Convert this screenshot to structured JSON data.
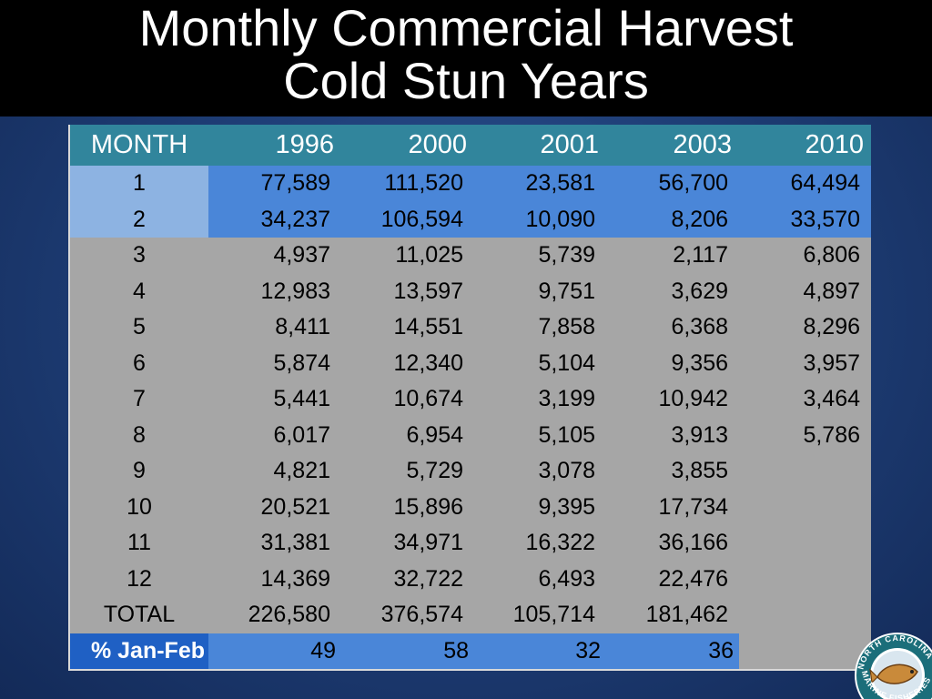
{
  "title": {
    "line1": "Monthly Commercial Harvest",
    "line2": "Cold Stun Years"
  },
  "table": {
    "headers": [
      "MONTH",
      "1996",
      "2000",
      "2001",
      "2003",
      "2010"
    ],
    "rows": [
      {
        "month": "1",
        "values": [
          "77,589",
          "111,520",
          "23,581",
          "56,700",
          "64,494"
        ]
      },
      {
        "month": "2",
        "values": [
          "34,237",
          "106,594",
          "10,090",
          "8,206",
          "33,570"
        ]
      },
      {
        "month": "3",
        "values": [
          "4,937",
          "11,025",
          "5,739",
          "2,117",
          "6,806"
        ]
      },
      {
        "month": "4",
        "values": [
          "12,983",
          "13,597",
          "9,751",
          "3,629",
          "4,897"
        ]
      },
      {
        "month": "5",
        "values": [
          "8,411",
          "14,551",
          "7,858",
          "6,368",
          "8,296"
        ]
      },
      {
        "month": "6",
        "values": [
          "5,874",
          "12,340",
          "5,104",
          "9,356",
          "3,957"
        ]
      },
      {
        "month": "7",
        "values": [
          "5,441",
          "10,674",
          "3,199",
          "10,942",
          "3,464"
        ]
      },
      {
        "month": "8",
        "values": [
          "6,017",
          "6,954",
          "5,105",
          "3,913",
          "5,786"
        ]
      },
      {
        "month": "9",
        "values": [
          "4,821",
          "5,729",
          "3,078",
          "3,855",
          ""
        ]
      },
      {
        "month": "10",
        "values": [
          "20,521",
          "15,896",
          "9,395",
          "17,734",
          ""
        ]
      },
      {
        "month": "11",
        "values": [
          "31,381",
          "34,971",
          "16,322",
          "36,166",
          ""
        ]
      },
      {
        "month": "12",
        "values": [
          "14,369",
          "32,722",
          "6,493",
          "22,476",
          ""
        ]
      },
      {
        "month": "TOTAL",
        "values": [
          "226,580",
          "376,574",
          "105,714",
          "181,462",
          ""
        ]
      }
    ],
    "pct_row": {
      "label": "% Jan-Feb",
      "values": [
        "49",
        "58",
        "32",
        "36"
      ]
    }
  },
  "logo": {
    "text_top": "NORTH CAROLINA",
    "text_bottom": "MARINE FISHERIES"
  },
  "colors": {
    "header": "#31859c",
    "highlight_month": "#8db3e2",
    "highlight_value": "#4a86d8",
    "body": "#a6a6a6",
    "pct_label": "#1f60c4"
  }
}
